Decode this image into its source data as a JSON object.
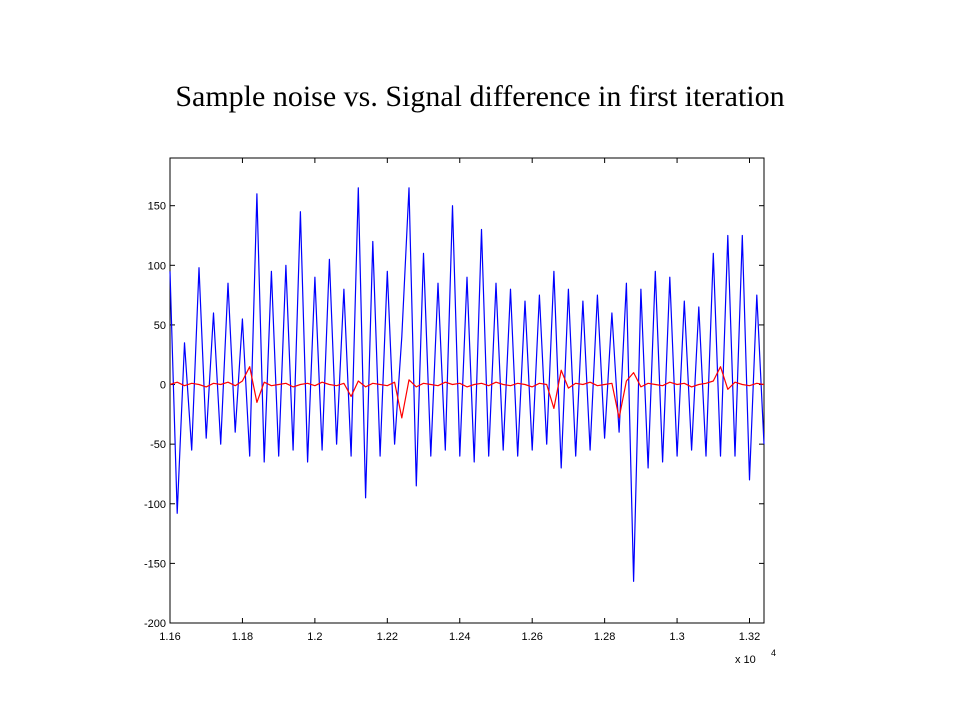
{
  "chart_data": {
    "type": "line",
    "title": "Sample noise vs. Signal difference in first iteration",
    "x_multiplier": "x 10",
    "x_exponent": "4",
    "xlim": [
      1.16,
      1.324
    ],
    "xticks": [
      1.16,
      1.18,
      1.2,
      1.22,
      1.24,
      1.26,
      1.28,
      1.3,
      1.32
    ],
    "ylim": [
      -200,
      190
    ],
    "yticks": [
      -200,
      -150,
      -100,
      -50,
      0,
      50,
      100,
      150
    ],
    "x": [
      1.16,
      1.162,
      1.164,
      1.166,
      1.168,
      1.17,
      1.172,
      1.174,
      1.176,
      1.178,
      1.18,
      1.182,
      1.184,
      1.186,
      1.188,
      1.19,
      1.192,
      1.194,
      1.196,
      1.198,
      1.2,
      1.202,
      1.204,
      1.206,
      1.208,
      1.21,
      1.212,
      1.214,
      1.216,
      1.218,
      1.22,
      1.222,
      1.224,
      1.226,
      1.228,
      1.23,
      1.232,
      1.234,
      1.236,
      1.238,
      1.24,
      1.242,
      1.244,
      1.246,
      1.248,
      1.25,
      1.252,
      1.254,
      1.256,
      1.258,
      1.26,
      1.262,
      1.264,
      1.266,
      1.268,
      1.27,
      1.272,
      1.274,
      1.276,
      1.278,
      1.28,
      1.282,
      1.284,
      1.286,
      1.288,
      1.29,
      1.292,
      1.294,
      1.296,
      1.298,
      1.3,
      1.302,
      1.304,
      1.306,
      1.308,
      1.31,
      1.312,
      1.314,
      1.316,
      1.318,
      1.32,
      1.322,
      1.324
    ],
    "series": [
      {
        "name": "Signal difference",
        "color": "#0000ff",
        "values": [
          95,
          -108,
          35,
          -55,
          98,
          -45,
          60,
          -50,
          85,
          -40,
          55,
          -60,
          160,
          -65,
          95,
          -60,
          100,
          -55,
          145,
          -65,
          90,
          -55,
          105,
          -50,
          80,
          -60,
          165,
          -95,
          120,
          -60,
          95,
          -50,
          40,
          165,
          -85,
          110,
          -60,
          85,
          -55,
          150,
          -60,
          90,
          -65,
          130,
          -60,
          85,
          -55,
          80,
          -60,
          70,
          -55,
          75,
          -50,
          95,
          -70,
          80,
          -60,
          70,
          -55,
          75,
          -45,
          60,
          -40,
          85,
          -165,
          80,
          -70,
          95,
          -65,
          90,
          -60,
          70,
          -55,
          65,
          -60,
          110,
          -60,
          125,
          -60,
          125,
          -80,
          75,
          -50
        ]
      },
      {
        "name": "Sample noise",
        "color": "#ff0000",
        "values": [
          0,
          2,
          -1,
          1,
          0,
          -2,
          1,
          0,
          2,
          -1,
          3,
          15,
          -15,
          2,
          -1,
          0,
          1,
          -2,
          0,
          1,
          -1,
          2,
          0,
          -1,
          1,
          -10,
          3,
          -2,
          1,
          0,
          -1,
          2,
          -28,
          4,
          -2,
          1,
          0,
          -1,
          2,
          0,
          1,
          -2,
          0,
          1,
          -1,
          2,
          0,
          -1,
          1,
          0,
          -2,
          1,
          0,
          -20,
          12,
          -3,
          1,
          0,
          2,
          -1,
          0,
          1,
          -28,
          3,
          10,
          -2,
          1,
          0,
          -1,
          2,
          0,
          1,
          -2,
          0,
          1,
          3,
          15,
          -4,
          2,
          0,
          -1,
          1,
          0
        ]
      }
    ]
  }
}
